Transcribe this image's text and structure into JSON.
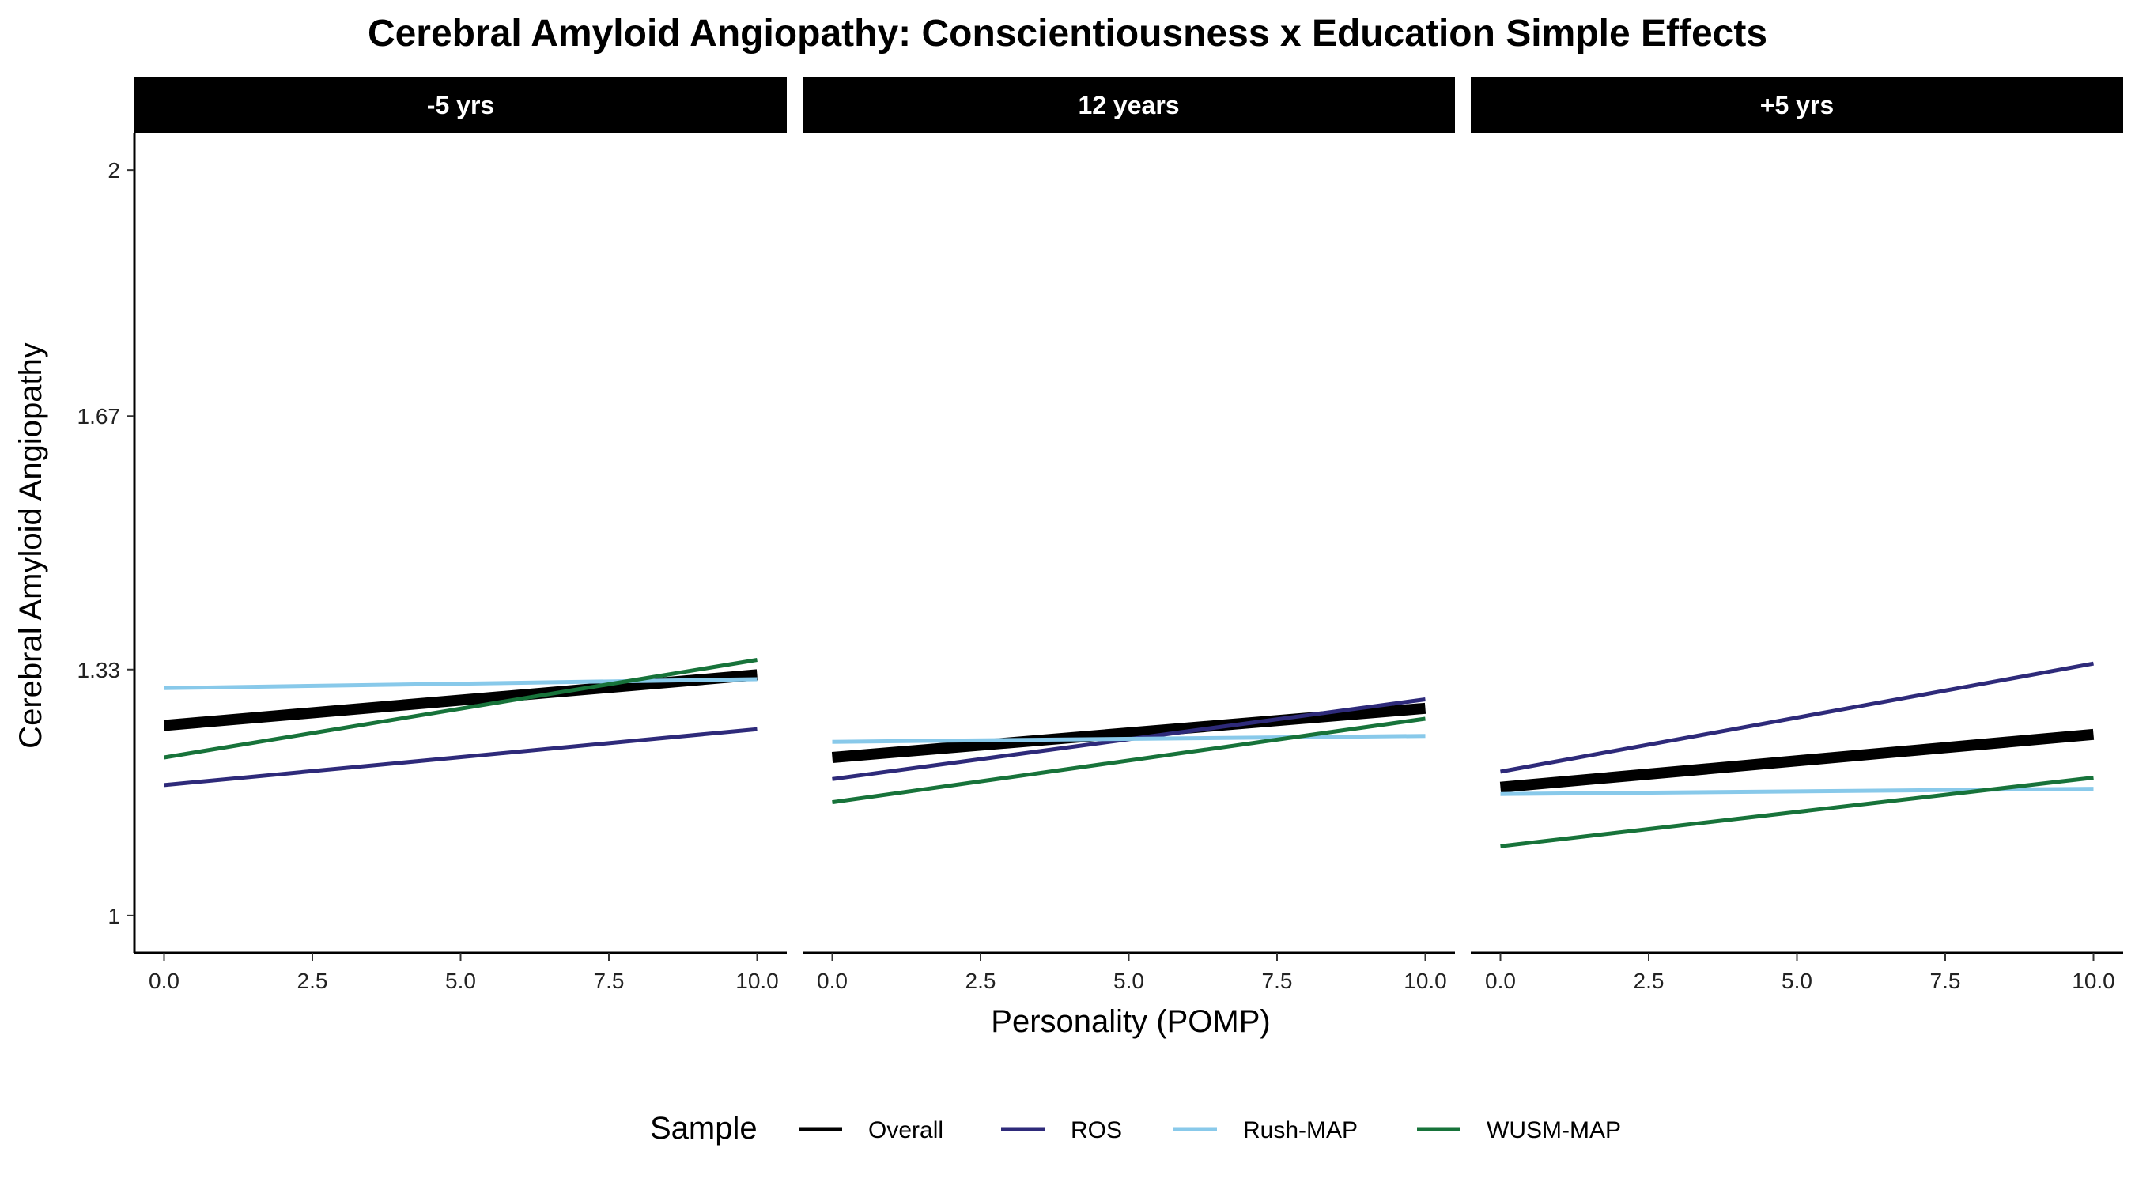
{
  "chart_data": {
    "type": "line",
    "title": "Cerebral Amyloid Angiopathy: Conscientiousness x Education Simple Effects",
    "xlabel": "Personality (POMP)",
    "ylabel": "Cerebral Amyloid Angiopathy",
    "xlim": [
      -0.5,
      10.5
    ],
    "ylim": [
      0.95,
      2.05
    ],
    "x_ticks": [
      0,
      2.5,
      5,
      7.5,
      10
    ],
    "x_tick_labels": [
      "0.0",
      "2.5",
      "5.0",
      "7.5",
      "10.0"
    ],
    "y_ticks": [
      1,
      1.33,
      1.67,
      2
    ],
    "y_tick_labels": [
      "1",
      "1.33",
      "1.67",
      "2"
    ],
    "grid": false,
    "legend_position": "bottom",
    "legend_title": "Sample",
    "series_styles": [
      {
        "name": "Overall",
        "color": "#000000",
        "width": "thick"
      },
      {
        "name": "ROS",
        "color": "#2E2A7A",
        "width": "thin"
      },
      {
        "name": "Rush-MAP",
        "color": "#88C9EA",
        "width": "thin"
      },
      {
        "name": "WUSM-MAP",
        "color": "#17733A",
        "width": "thin"
      }
    ],
    "facets": [
      {
        "label": "-5 yrs",
        "series": [
          {
            "name": "Overall",
            "x": [
              0,
              10
            ],
            "y": [
              1.255,
              1.323
            ]
          },
          {
            "name": "ROS",
            "x": [
              0,
              10
            ],
            "y": [
              1.175,
              1.25
            ]
          },
          {
            "name": "Rush-MAP",
            "x": [
              0,
              10
            ],
            "y": [
              1.305,
              1.317
            ]
          },
          {
            "name": "WUSM-MAP",
            "x": [
              0,
              10
            ],
            "y": [
              1.212,
              1.343
            ]
          }
        ]
      },
      {
        "label": "12 years",
        "series": [
          {
            "name": "Overall",
            "x": [
              0,
              10
            ],
            "y": [
              1.212,
              1.278
            ]
          },
          {
            "name": "ROS",
            "x": [
              0,
              10
            ],
            "y": [
              1.183,
              1.29
            ]
          },
          {
            "name": "Rush-MAP",
            "x": [
              0,
              10
            ],
            "y": [
              1.233,
              1.241
            ]
          },
          {
            "name": "WUSM-MAP",
            "x": [
              0,
              10
            ],
            "y": [
              1.152,
              1.264
            ]
          }
        ]
      },
      {
        "label": "+5 yrs",
        "series": [
          {
            "name": "Overall",
            "x": [
              0,
              10
            ],
            "y": [
              1.172,
              1.243
            ]
          },
          {
            "name": "ROS",
            "x": [
              0,
              10
            ],
            "y": [
              1.193,
              1.338
            ]
          },
          {
            "name": "Rush-MAP",
            "x": [
              0,
              10
            ],
            "y": [
              1.163,
              1.17
            ]
          },
          {
            "name": "WUSM-MAP",
            "x": [
              0,
              10
            ],
            "y": [
              1.093,
              1.185
            ]
          }
        ]
      }
    ]
  }
}
